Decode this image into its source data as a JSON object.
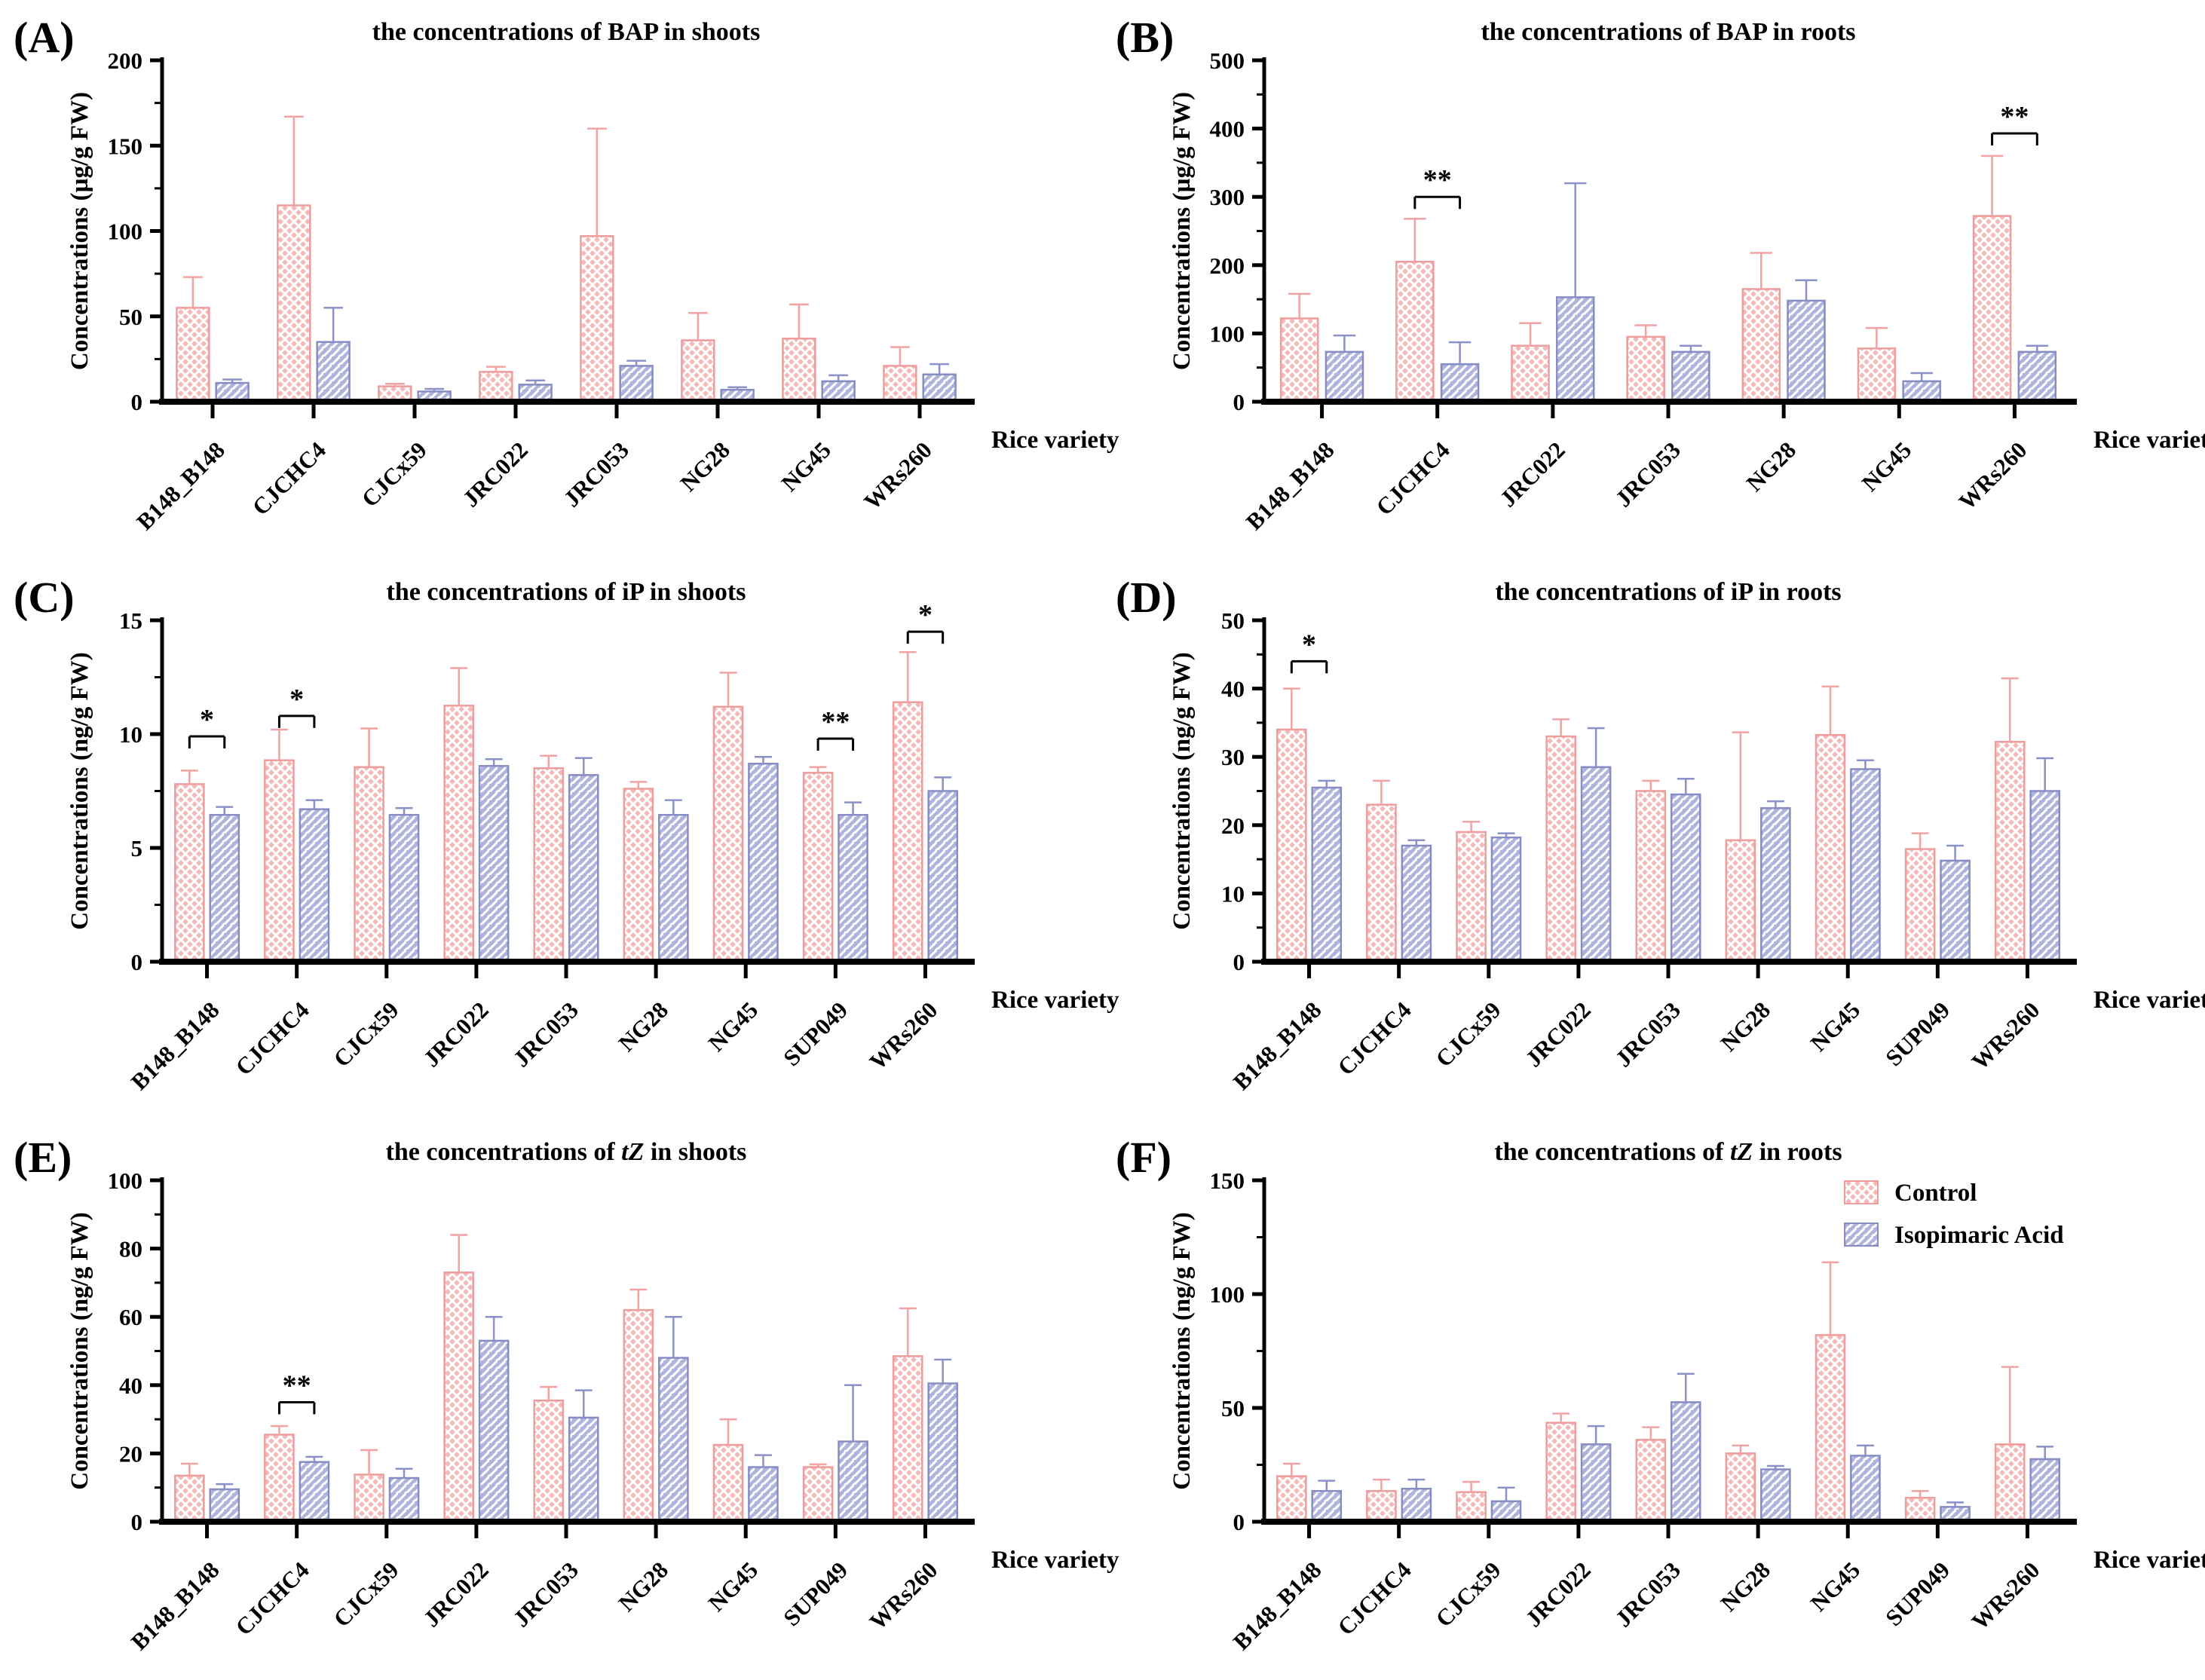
{
  "colors": {
    "control_stroke": "#ee9c9c",
    "control_fill_base": "#f5b8b8",
    "control_errbar": "#f2a2a2",
    "isopimaric_stroke": "#868cc4",
    "isopimaric_fill_base": "#aeb4db",
    "isopimaric_errbar": "#8a90c8",
    "axis": "#000000"
  },
  "legend": {
    "items": [
      {
        "label": "Control",
        "series": "control",
        "swatch": "control-pattern-swatch"
      },
      {
        "label": "Isopimaric Acid",
        "series": "isopimaric",
        "swatch": "isopimaric-pattern-swatch"
      }
    ]
  },
  "chart_data": [
    {
      "type": "bar",
      "letter": "(A)",
      "title_parts": [
        {
          "t": "the concentrations of BAP in shoots",
          "i": false
        }
      ],
      "ylabel": "Concentrations (µg/g FW)",
      "xlabel": "Rice variety",
      "ylim": [
        0,
        200
      ],
      "ytick_step": 50,
      "minor_step": 25,
      "grid": false,
      "legend": false,
      "categories": [
        "B148_B148",
        "CJCHC4",
        "CJCx59",
        "JRC022",
        "JRC053",
        "NG28",
        "NG45",
        "WRs260"
      ],
      "series": [
        {
          "name": "Control",
          "values": [
            55,
            115,
            9,
            17.5,
            97,
            36,
            37,
            21
          ],
          "errors": [
            18,
            52,
            1.5,
            3,
            63,
            16,
            20,
            11
          ]
        },
        {
          "name": "Isopimaric Acid",
          "values": [
            11,
            35,
            6,
            10,
            21,
            7,
            12,
            16
          ],
          "errors": [
            2,
            20,
            1.5,
            2.5,
            3,
            1.5,
            3.5,
            6
          ]
        }
      ],
      "significance": []
    },
    {
      "type": "bar",
      "letter": "(B)",
      "title_parts": [
        {
          "t": "the concentrations of BAP in roots",
          "i": false
        }
      ],
      "ylabel": "Concentrations (µg/g FW)",
      "xlabel": "Rice variety",
      "ylim": [
        0,
        500
      ],
      "ytick_step": 100,
      "minor_step": 50,
      "grid": false,
      "legend": false,
      "categories": [
        "B148_B148",
        "CJCHC4",
        "JRC022",
        "JRC053",
        "NG28",
        "NG45",
        "WRs260"
      ],
      "series": [
        {
          "name": "Control",
          "values": [
            122,
            205,
            82,
            95,
            165,
            78,
            272
          ],
          "errors": [
            36,
            63,
            33,
            17,
            53,
            30,
            88
          ]
        },
        {
          "name": "Isopimaric Acid",
          "values": [
            73,
            55,
            153,
            73,
            148,
            30,
            73
          ],
          "errors": [
            24,
            32,
            167,
            9,
            30,
            12,
            9
          ]
        }
      ],
      "significance": [
        {
          "category": "CJCHC4",
          "index": 1,
          "label": "**",
          "y": 300
        },
        {
          "category": "WRs260",
          "index": 6,
          "label": "**",
          "y": 393
        }
      ]
    },
    {
      "type": "bar",
      "letter": "(C)",
      "title_parts": [
        {
          "t": "the concentrations of iP in shoots",
          "i": false
        }
      ],
      "ylabel": "Concentrations (ng/g FW)",
      "xlabel": "Rice variety",
      "ylim": [
        0,
        15
      ],
      "ytick_step": 5,
      "minor_step": 2.5,
      "grid": false,
      "legend": false,
      "categories": [
        "B148_B148",
        "CJCHC4",
        "CJCx59",
        "JRC022",
        "JRC053",
        "NG28",
        "NG45",
        "SUP049",
        "WRs260"
      ],
      "series": [
        {
          "name": "Control",
          "values": [
            7.8,
            8.85,
            8.55,
            11.25,
            8.5,
            7.6,
            11.2,
            8.3,
            11.4
          ],
          "errors": [
            0.6,
            1.35,
            1.7,
            1.65,
            0.55,
            0.3,
            1.5,
            0.25,
            2.2
          ]
        },
        {
          "name": "Isopimaric Acid",
          "values": [
            6.45,
            6.7,
            6.45,
            8.6,
            8.2,
            6.45,
            8.7,
            6.45,
            7.5
          ],
          "errors": [
            0.35,
            0.4,
            0.3,
            0.3,
            0.75,
            0.65,
            0.3,
            0.55,
            0.6
          ]
        }
      ],
      "significance": [
        {
          "category": "B148_B148",
          "index": 0,
          "label": "*",
          "y": 9.9
        },
        {
          "category": "CJCHC4",
          "index": 1,
          "label": "*",
          "y": 10.8
        },
        {
          "category": "SUP049",
          "index": 7,
          "label": "**",
          "y": 9.8
        },
        {
          "category": "WRs260",
          "index": 8,
          "label": "*",
          "y": 14.5
        }
      ]
    },
    {
      "type": "bar",
      "letter": "(D)",
      "title_parts": [
        {
          "t": "the concentrations of iP in roots",
          "i": false
        }
      ],
      "ylabel": "Concentrations (ng/g FW)",
      "xlabel": "Rice variety",
      "ylim": [
        0,
        50
      ],
      "ytick_step": 10,
      "minor_step": 5,
      "grid": false,
      "legend": false,
      "categories": [
        "B148_B148",
        "CJCHC4",
        "CJCx59",
        "JRC022",
        "JRC053",
        "NG28",
        "NG45",
        "SUP049",
        "WRs260"
      ],
      "series": [
        {
          "name": "Control",
          "values": [
            34,
            23,
            19,
            33,
            25,
            17.8,
            33.2,
            16.5,
            32.2
          ],
          "errors": [
            6,
            3.5,
            1.5,
            2.5,
            1.5,
            15.8,
            7.1,
            2.3,
            9.3
          ]
        },
        {
          "name": "Isopimaric Acid",
          "values": [
            25.5,
            17,
            18.2,
            28.5,
            24.5,
            22.5,
            28.2,
            14.8,
            25
          ],
          "errors": [
            1,
            0.8,
            0.6,
            5.7,
            2.3,
            1,
            1.3,
            2.2,
            4.8
          ]
        }
      ],
      "significance": [
        {
          "category": "B148_B148",
          "index": 0,
          "label": "*",
          "y": 44
        }
      ]
    },
    {
      "type": "bar",
      "letter": "(E)",
      "title_parts": [
        {
          "t": "the concentrations of ",
          "i": false
        },
        {
          "t": "tZ",
          "i": true
        },
        {
          "t": " in shoots",
          "i": false
        }
      ],
      "ylabel": "Concentrations (ng/g FW)",
      "xlabel": "Rice variety",
      "ylim": [
        0,
        100
      ],
      "ytick_step": 20,
      "minor_step": 10,
      "grid": false,
      "legend": false,
      "categories": [
        "B148_B148",
        "CJCHC4",
        "CJCx59",
        "JRC022",
        "JRC053",
        "NG28",
        "NG45",
        "SUP049",
        "WRs260"
      ],
      "series": [
        {
          "name": "Control",
          "values": [
            13.5,
            25.5,
            13.8,
            73,
            35.5,
            62,
            22.5,
            16,
            48.5
          ],
          "errors": [
            3.5,
            2.5,
            7.2,
            11,
            4,
            6,
            7.5,
            0.8,
            14
          ]
        },
        {
          "name": "Isopimaric Acid",
          "values": [
            9.5,
            17.5,
            12.8,
            53,
            30.5,
            48,
            16,
            23.5,
            40.5
          ],
          "errors": [
            1.5,
            1.5,
            2.7,
            7,
            8,
            12,
            3.5,
            16.5,
            7
          ]
        }
      ],
      "significance": [
        {
          "category": "CJCHC4",
          "index": 1,
          "label": "**",
          "y": 35
        }
      ]
    },
    {
      "type": "bar",
      "letter": "(F)",
      "title_parts": [
        {
          "t": "the concentrations of ",
          "i": false
        },
        {
          "t": "tZ",
          "i": true
        },
        {
          "t": " in roots",
          "i": false
        }
      ],
      "ylabel": "Concentrations (ng/g FW)",
      "xlabel": "Rice variety",
      "ylim": [
        0,
        150
      ],
      "ytick_step": 50,
      "minor_step": 25,
      "grid": false,
      "legend": true,
      "categories": [
        "B148_B148",
        "CJCHC4",
        "CJCx59",
        "JRC022",
        "JRC053",
        "NG28",
        "NG45",
        "SUP049",
        "WRs260"
      ],
      "series": [
        {
          "name": "Control",
          "values": [
            20,
            13.5,
            13,
            43.5,
            36,
            30,
            82,
            10.5,
            34
          ],
          "errors": [
            5.5,
            5,
            4.5,
            4,
            5.5,
            3.5,
            32,
            3,
            34
          ]
        },
        {
          "name": "Isopimaric Acid",
          "values": [
            13.5,
            14.5,
            9,
            34,
            52.5,
            23,
            29,
            6.5,
            27.5
          ],
          "errors": [
            4.5,
            4,
            6,
            8,
            12.5,
            1.5,
            4.5,
            2,
            5.5
          ]
        }
      ],
      "significance": []
    }
  ]
}
